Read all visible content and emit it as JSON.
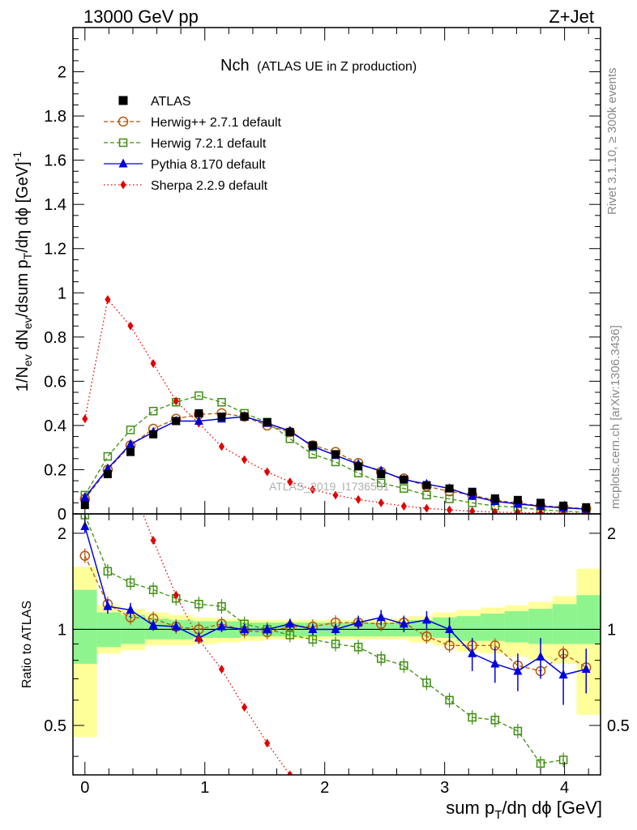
{
  "header": {
    "left": "13000 GeV pp",
    "right": "Z+Jet"
  },
  "side_labels": {
    "rivet": "Rivet 3.1.10, ≥ 300k events",
    "mcplots": "mcplots.cern.ch [arXiv:1306.3436]"
  },
  "watermark": "ATLAS_2019_I1736531",
  "chart_data": {
    "type": "line",
    "title_main": "Nch",
    "title_sub": "(ATLAS UE in Z production)",
    "xlabel": "sum p_T/dη dϕ [GeV]",
    "ylabel_top": "1/N_ev dN_ev/dsum p_T/dη dϕ [GeV]^-1",
    "ylabel_bottom": "Ratio to ATLAS",
    "xlim": [
      -0.1,
      4.3
    ],
    "ylim_top": [
      0,
      2.2
    ],
    "ylim_bottom": [
      0.35,
      2.3
    ],
    "x_ticks": [
      "0",
      "1",
      "2",
      "3",
      "4"
    ],
    "y_ticks_top": [
      "0",
      "0.2",
      "0.4",
      "0.6",
      "0.8",
      "1",
      "1.2",
      "1.4",
      "1.6",
      "1.8",
      "2"
    ],
    "y_ticks_bottom": [
      "0.5",
      "1",
      "2"
    ],
    "x": [
      0.0,
      0.19,
      0.38,
      0.57,
      0.76,
      0.95,
      1.14,
      1.33,
      1.52,
      1.71,
      1.9,
      2.09,
      2.28,
      2.47,
      2.66,
      2.85,
      3.04,
      3.23,
      3.42,
      3.61,
      3.8,
      3.99,
      4.18
    ],
    "series": [
      {
        "name": "ATLAS",
        "legend": "ATLAS",
        "color": "#000000",
        "marker": "square-filled",
        "dash": "none",
        "values": [
          0.04,
          0.18,
          0.28,
          0.36,
          0.42,
          0.455,
          0.44,
          0.44,
          0.415,
          0.37,
          0.31,
          0.27,
          0.215,
          0.18,
          0.155,
          0.13,
          0.115,
          0.1,
          0.07,
          0.063,
          0.05,
          0.037,
          0.03
        ]
      },
      {
        "name": "Herwig++ 2.7.1",
        "legend": "Herwig++ 2.7.1 default",
        "color": "#b2560c",
        "marker": "circle-open",
        "dash": "5,3",
        "values": [
          0.068,
          0.2,
          0.31,
          0.385,
          0.43,
          0.45,
          0.455,
          0.44,
          0.4,
          0.37,
          0.31,
          0.28,
          0.23,
          0.19,
          0.16,
          0.125,
          0.102,
          0.085,
          0.062,
          0.049,
          0.037,
          0.031,
          0.023
        ]
      },
      {
        "name": "Herwig 7.2.1",
        "legend": "Herwig 7.2.1 default",
        "color": "#3d8f0f",
        "marker": "square-open",
        "dash": "5,3",
        "values": [
          0.085,
          0.26,
          0.38,
          0.465,
          0.505,
          0.535,
          0.505,
          0.455,
          0.415,
          0.34,
          0.27,
          0.235,
          0.185,
          0.14,
          0.115,
          0.085,
          0.068,
          0.05,
          0.036,
          0.03,
          0.018,
          0.013,
          0.006
        ]
      },
      {
        "name": "Pythia 8.170",
        "legend": "Pythia 8.170 default",
        "color": "#0000dd",
        "marker": "triangle-filled",
        "dash": "none",
        "values": [
          0.075,
          0.205,
          0.315,
          0.37,
          0.42,
          0.42,
          0.43,
          0.44,
          0.41,
          0.375,
          0.305,
          0.265,
          0.225,
          0.195,
          0.155,
          0.135,
          0.115,
          0.08,
          0.057,
          0.045,
          0.035,
          0.027,
          0.022
        ]
      },
      {
        "name": "Sherpa 2.2.9",
        "legend": "Sherpa 2.2.9 default",
        "color": "#e00000",
        "marker": "diamond-filled",
        "dash": "1.5,3",
        "values": [
          0.43,
          0.97,
          0.85,
          0.68,
          0.51,
          0.41,
          0.305,
          0.245,
          0.19,
          0.145,
          0.11,
          0.085,
          0.065,
          0.05,
          0.035,
          0.025,
          0.018,
          0.012,
          0.008,
          0.006,
          0.004,
          0.003,
          0.002
        ]
      }
    ],
    "ratios": [
      {
        "name": "Herwig++ 2.7.1",
        "values": [
          1.7,
          1.2,
          1.09,
          1.08,
          1.02,
          1.0,
          1.04,
          0.99,
          0.98,
          1.02,
          1.02,
          1.05,
          1.05,
          1.04,
          1.05,
          0.95,
          0.89,
          0.89,
          0.89,
          0.77,
          0.74,
          0.84,
          0.76
        ]
      },
      {
        "name": "Herwig 7.2.1",
        "values": [
          2.28,
          1.52,
          1.4,
          1.33,
          1.25,
          1.2,
          1.18,
          1.04,
          1.0,
          0.96,
          0.93,
          0.9,
          0.88,
          0.81,
          0.77,
          0.68,
          0.6,
          0.53,
          0.52,
          0.48,
          0.38,
          0.39,
          null
        ]
      },
      {
        "name": "Pythia 8.170",
        "values": [
          2.1,
          1.18,
          1.15,
          1.03,
          1.02,
          0.94,
          1.02,
          1.0,
          1.0,
          1.04,
          1.0,
          1.0,
          1.05,
          1.09,
          1.04,
          1.07,
          1.0,
          0.84,
          0.78,
          0.74,
          0.82,
          0.72,
          0.75
        ]
      },
      {
        "name": "Sherpa 2.2.9",
        "values": [
          null,
          null,
          null,
          1.9,
          1.28,
          0.93,
          0.75,
          0.57,
          0.44,
          0.35,
          null,
          null,
          null,
          null,
          null,
          null,
          null,
          null,
          null,
          null,
          null,
          null,
          null
        ]
      }
    ],
    "ratio_errors_pythia": [
      0.1,
      0.06,
      0.06,
      0.04,
      0.04,
      0.04,
      0.04,
      0.04,
      0.04,
      0.04,
      0.04,
      0.04,
      0.05,
      0.06,
      0.06,
      0.07,
      0.09,
      0.1,
      0.1,
      0.1,
      0.12,
      0.14,
      0.12
    ],
    "ratio_band_edges": [
      -0.1,
      0.1,
      0.3,
      0.5,
      0.7,
      0.9,
      1.1,
      1.3,
      1.5,
      1.7,
      1.9,
      2.1,
      2.3,
      2.5,
      2.7,
      2.9,
      3.1,
      3.3,
      3.5,
      3.7,
      3.9,
      4.1,
      4.3
    ],
    "ratio_band_stat_lo": [
      0.78,
      0.88,
      0.9,
      0.93,
      0.93,
      0.94,
      0.94,
      0.95,
      0.95,
      0.95,
      0.95,
      0.95,
      0.95,
      0.95,
      0.95,
      0.94,
      0.92,
      0.92,
      0.91,
      0.9,
      0.9,
      0.9
    ],
    "ratio_band_stat_hi": [
      1.33,
      1.13,
      1.11,
      1.08,
      1.07,
      1.06,
      1.06,
      1.05,
      1.05,
      1.05,
      1.05,
      1.05,
      1.05,
      1.05,
      1.07,
      1.09,
      1.1,
      1.12,
      1.14,
      1.16,
      1.2,
      1.28
    ],
    "ratio_band_syst_lo": [
      0.46,
      0.84,
      0.86,
      0.89,
      0.89,
      0.9,
      0.91,
      0.92,
      0.93,
      0.93,
      0.93,
      0.93,
      0.93,
      0.93,
      0.91,
      0.89,
      0.85,
      0.84,
      0.82,
      0.8,
      0.78,
      0.54
    ],
    "ratio_band_syst_hi": [
      1.57,
      1.19,
      1.16,
      1.13,
      1.11,
      1.09,
      1.08,
      1.07,
      1.07,
      1.07,
      1.07,
      1.07,
      1.07,
      1.08,
      1.1,
      1.13,
      1.15,
      1.17,
      1.19,
      1.22,
      1.27,
      1.55
    ],
    "band_colors": {
      "stat": "#8ef58e",
      "syst": "#ffff99"
    }
  }
}
